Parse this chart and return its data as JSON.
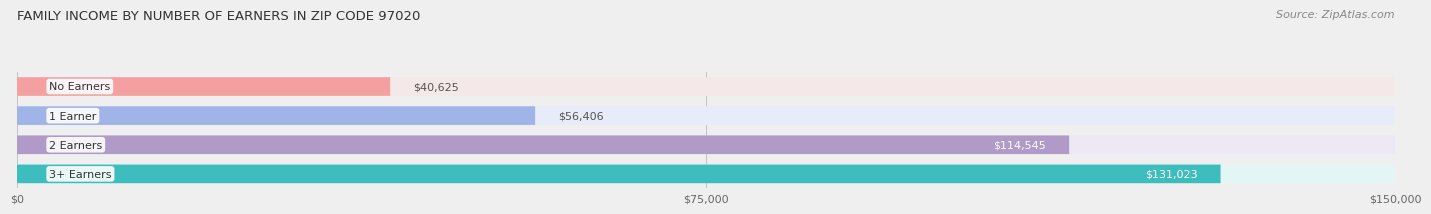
{
  "title": "FAMILY INCOME BY NUMBER OF EARNERS IN ZIP CODE 97020",
  "source": "Source: ZipAtlas.com",
  "categories": [
    "No Earners",
    "1 Earner",
    "2 Earners",
    "3+ Earners"
  ],
  "values": [
    40625,
    56406,
    114545,
    131023
  ],
  "bar_colors": [
    "#f4a0a0",
    "#a0b4e8",
    "#b09ac8",
    "#3dbdbd"
  ],
  "bar_bg_colors": [
    "#f5e8e8",
    "#e8ecf8",
    "#ece8f4",
    "#e4f5f5"
  ],
  "label_colors": [
    "#555555",
    "#555555",
    "#ffffff",
    "#ffffff"
  ],
  "max_value": 150000,
  "xticks": [
    0,
    75000,
    150000
  ],
  "xtick_labels": [
    "$0",
    "$75,000",
    "$150,000"
  ],
  "title_fontsize": 9.5,
  "source_fontsize": 8,
  "bar_label_fontsize": 8,
  "cat_label_fontsize": 8,
  "background_color": "#efefef"
}
